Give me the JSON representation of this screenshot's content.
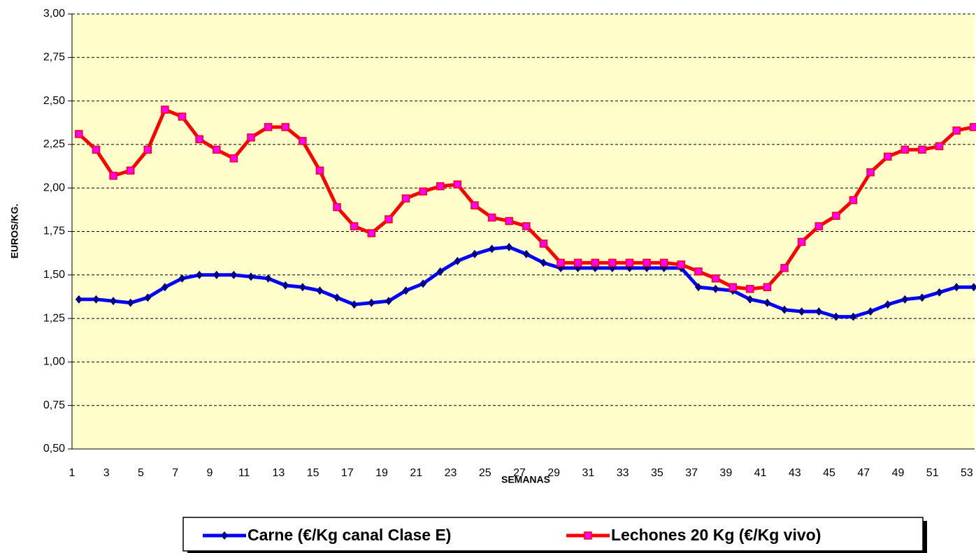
{
  "chart_data": {
    "type": "line",
    "y_label": "EUROS/KG.",
    "x_label": "SEMANAS",
    "categories": [
      "1",
      null,
      "3",
      null,
      "5",
      null,
      "7",
      null,
      "9",
      null,
      "11",
      null,
      "13",
      null,
      "15",
      null,
      "17",
      null,
      "19",
      null,
      "21",
      null,
      "23",
      null,
      "25",
      null,
      "27",
      null,
      "29",
      null,
      "31",
      null,
      "33",
      null,
      "35",
      null,
      "37",
      null,
      "39",
      null,
      "41",
      null,
      "43",
      null,
      "45",
      null,
      "47",
      null,
      "49",
      null,
      "51",
      null,
      "53"
    ],
    "series": [
      {
        "name": "Carne (€/Kg canal Clase E)",
        "color": "#0000ff",
        "marker": "diamond",
        "values": [
          1.36,
          1.36,
          1.35,
          1.34,
          1.37,
          1.43,
          1.48,
          1.5,
          1.5,
          1.5,
          1.49,
          1.48,
          1.44,
          1.43,
          1.41,
          1.37,
          1.33,
          1.34,
          1.35,
          1.41,
          1.45,
          1.52,
          1.58,
          1.62,
          1.65,
          1.66,
          1.62,
          1.57,
          1.54,
          1.54,
          1.54,
          1.54,
          1.54,
          1.54,
          1.54,
          1.54,
          1.43,
          1.42,
          1.41,
          1.36,
          1.34,
          1.3,
          1.29,
          1.29,
          1.26,
          1.26,
          1.29,
          1.33,
          1.36,
          1.37,
          1.4,
          1.43,
          1.43
        ]
      },
      {
        "name": "Lechones 20 Kg (€/Kg vivo)",
        "color": "#ff0000",
        "marker_color": "#ff00ff",
        "marker": "square",
        "values": [
          2.31,
          2.22,
          2.07,
          2.1,
          2.22,
          2.45,
          2.41,
          2.28,
          2.22,
          2.17,
          2.29,
          2.35,
          2.35,
          2.27,
          2.1,
          1.89,
          1.78,
          1.74,
          1.82,
          1.94,
          1.98,
          2.01,
          2.02,
          1.9,
          1.83,
          1.81,
          1.78,
          1.68,
          1.57,
          1.57,
          1.57,
          1.57,
          1.57,
          1.57,
          1.57,
          1.56,
          1.52,
          1.48,
          1.43,
          1.42,
          1.43,
          1.54,
          1.69,
          1.78,
          1.84,
          1.93,
          2.09,
          2.18,
          2.22,
          2.22,
          2.24,
          2.33,
          2.35
        ]
      }
    ],
    "ylim": [
      0.5,
      3.0
    ],
    "yticks": [
      {
        "value": 0.5,
        "label": "0,50"
      },
      {
        "value": 0.75,
        "label": "0,75"
      },
      {
        "value": 1.0,
        "label": "1,00"
      },
      {
        "value": 1.25,
        "label": "1,25"
      },
      {
        "value": 1.5,
        "label": "1,50"
      },
      {
        "value": 1.75,
        "label": "1,75"
      },
      {
        "value": 2.0,
        "label": "2,00"
      },
      {
        "value": 2.25,
        "label": "2,25"
      },
      {
        "value": 2.5,
        "label": "2,50"
      },
      {
        "value": 2.75,
        "label": "2,75"
      },
      {
        "value": 3.0,
        "label": "3,00"
      }
    ],
    "grid": true,
    "plot_background": "#ffffcc",
    "legend_position": "bottom"
  }
}
